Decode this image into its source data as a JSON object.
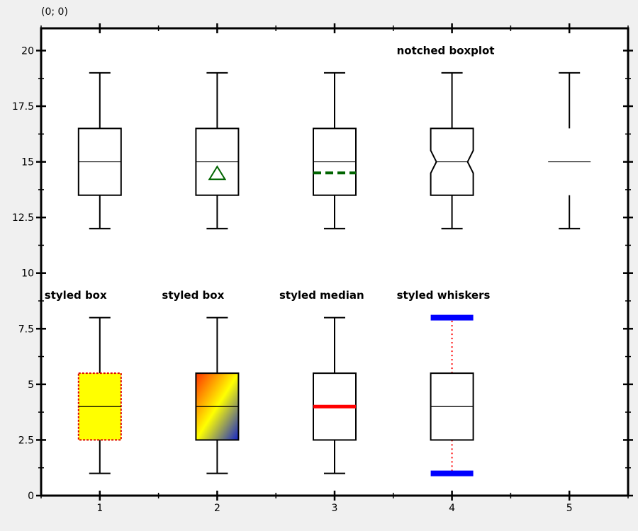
{
  "coordinate_readout": "(0; 0)",
  "chart_data": {
    "type": "boxplot",
    "xlim": [
      0.5,
      5.5
    ],
    "ylim": [
      0,
      21
    ],
    "x_ticks": [
      1,
      2,
      3,
      4,
      5
    ],
    "y_ticks": [
      {
        "value": 0,
        "label": "0"
      },
      {
        "value": 2.5,
        "label": "2.5"
      },
      {
        "value": 5,
        "label": "5"
      },
      {
        "value": 7.5,
        "label": "7.5"
      },
      {
        "value": 10,
        "label": "10"
      },
      {
        "value": 12.5,
        "label": "12.5"
      },
      {
        "value": 15,
        "label": "15"
      },
      {
        "value": 17.5,
        "label": "17.5"
      },
      {
        "value": 20,
        "label": "20"
      }
    ],
    "grid": false,
    "boxes": [
      {
        "x": 1,
        "min": 12,
        "q1": 13.5,
        "median": 15,
        "q3": 16.5,
        "max": 19,
        "style": "plain"
      },
      {
        "x": 2,
        "min": 12,
        "q1": 13.5,
        "median": 15,
        "q3": 16.5,
        "max": 19,
        "mean": 14.5,
        "mean_marker": "triangle",
        "style": "plain"
      },
      {
        "x": 3,
        "min": 12,
        "q1": 13.5,
        "median": 15,
        "q3": 16.5,
        "max": 19,
        "mean": 14.5,
        "mean_marker": "dashed-line",
        "style": "plain"
      },
      {
        "x": 4,
        "min": 12,
        "q1": 13.5,
        "median": 15,
        "q3": 16.5,
        "max": 19,
        "style": "notched"
      },
      {
        "x": 5,
        "min": 12,
        "q1": 13.5,
        "median": 15,
        "q3": 16.5,
        "max": 19,
        "style": "no-box"
      },
      {
        "x": 1,
        "min": 1,
        "q1": 2.5,
        "median": 4,
        "q3": 5.5,
        "max": 8,
        "style": "yellow-fill"
      },
      {
        "x": 2,
        "min": 1,
        "q1": 2.5,
        "median": 4,
        "q3": 5.5,
        "max": 8,
        "style": "gradient-fill"
      },
      {
        "x": 3,
        "min": 1,
        "q1": 2.5,
        "median": 4,
        "q3": 5.5,
        "max": 8,
        "style": "styled-median"
      },
      {
        "x": 4,
        "min": 1,
        "q1": 2.5,
        "median": 4,
        "q3": 5.5,
        "max": 8,
        "style": "styled-whiskers"
      }
    ],
    "annotations": [
      {
        "text": "notched boxplot",
        "x": 4,
        "y": 20
      },
      {
        "text": "styled box",
        "x": 1,
        "y": 9
      },
      {
        "text": "styled box",
        "x": 2,
        "y": 9
      },
      {
        "text": "styled median",
        "x": 3,
        "y": 9
      },
      {
        "text": "styled whiskers",
        "x": 4,
        "y": 9
      }
    ],
    "colors": {
      "mean": "#006400",
      "yellow_fill": "#ffff00",
      "yellow_border": "#dd0000",
      "gradient_from": "#ff3300",
      "gradient_mid": "#ffff00",
      "gradient_to": "#1122cc",
      "styled_median": "#ff0000",
      "whisker_cap": "#0000ff",
      "whisker_line": "#ff0000"
    }
  }
}
